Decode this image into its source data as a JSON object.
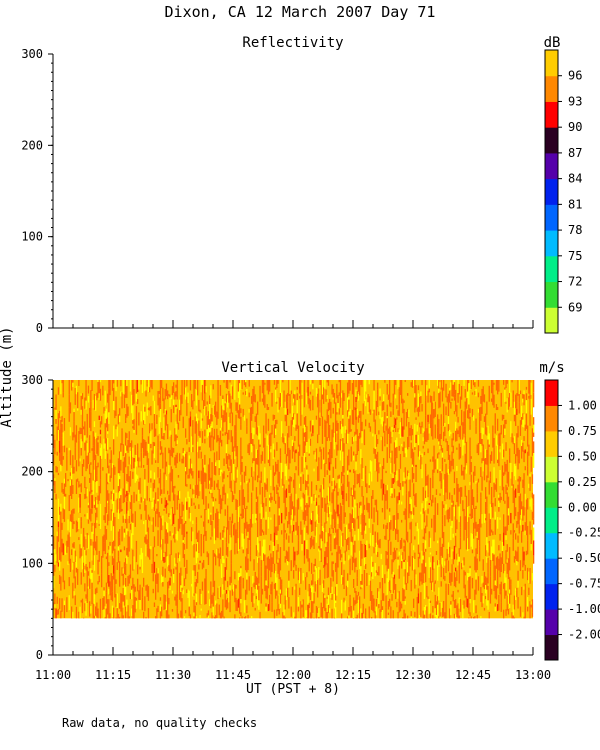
{
  "figure": {
    "title": "Dixon, CA 12 March 2007  Day  71",
    "ylabel": "Altitude (m)",
    "xlabel": "UT  (PST + 8)",
    "footnote": "Raw data, no quality checks"
  },
  "chart_data": [
    {
      "type": "heatmap",
      "title": "Reflectivity",
      "colorbar_label": "dB",
      "x_ticks": [
        "11:00",
        "11:15",
        "11:30",
        "11:45",
        "12:00",
        "12:15",
        "12:30",
        "12:45",
        "13:00"
      ],
      "y_ticks": [
        "0",
        "100",
        "200",
        "300"
      ],
      "ylim": [
        0,
        300
      ],
      "xlim": [
        "11:00",
        "13:00"
      ],
      "colorbar_ticks": [
        "69",
        "72",
        "75",
        "78",
        "81",
        "84",
        "87",
        "90",
        "93",
        "96"
      ],
      "colorbar_colors": [
        "#ccff33",
        "#33dd33",
        "#00ee88",
        "#00bbff",
        "#0066ff",
        "#0022ee",
        "#5500aa",
        "#2a0022",
        "#ff0000",
        "#ff8800",
        "#ffcc00"
      ],
      "data": "no returns shown"
    },
    {
      "type": "heatmap",
      "title": "Vertical Velocity",
      "colorbar_label": "m/s",
      "x_ticks": [
        "11:00",
        "11:15",
        "11:30",
        "11:45",
        "12:00",
        "12:15",
        "12:30",
        "12:45",
        "13:00"
      ],
      "y_ticks": [
        "0",
        "100",
        "200",
        "300"
      ],
      "ylim": [
        0,
        300
      ],
      "xlim": [
        "11:00",
        "13:00"
      ],
      "colorbar_ticks": [
        "-2.00",
        "-1.00",
        "-0.75",
        "-0.50",
        "-0.25",
        "0.00",
        "0.25",
        "0.50",
        "0.75",
        "1.00"
      ],
      "colorbar_colors": [
        "#2a0022",
        "#5500aa",
        "#0022ee",
        "#0066ff",
        "#00bbff",
        "#00ee88",
        "#33dd33",
        "#ccff33",
        "#ffcc00",
        "#ff8800",
        "#ff0000"
      ],
      "data_range_altitude_m": [
        40,
        300
      ],
      "data_range_time": [
        "11:00",
        "13:00"
      ],
      "dominant_values_m_s": [
        0.5,
        0.75,
        1.0
      ],
      "mean_velocity_m_s": 0.6
    }
  ]
}
